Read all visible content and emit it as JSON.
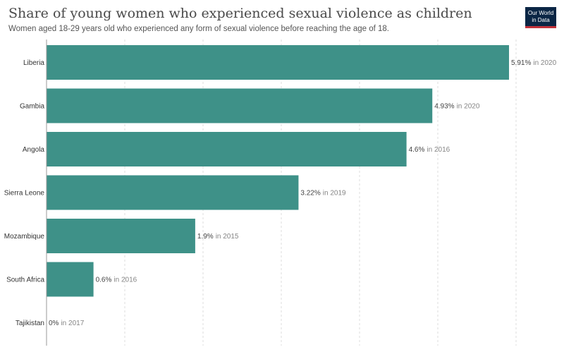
{
  "header": {
    "title": "Share of young women who experienced sexual violence as children",
    "subtitle": "Women aged 18-29 years old who experienced any form of sexual violence before reaching the age of 18.",
    "logo_line1": "Our World",
    "logo_line2": "in Data"
  },
  "colors": {
    "bar": "#3e9188",
    "grid": "#dddddd",
    "logo_bg": "#0b2645",
    "logo_accent": "#c2323a"
  },
  "chart_data": {
    "type": "bar",
    "orientation": "horizontal",
    "categories": [
      "Liberia",
      "Gambia",
      "Angola",
      "Sierra Leone",
      "Mozambique",
      "South Africa",
      "Tajikistan"
    ],
    "values": [
      5.91,
      4.93,
      4.6,
      3.22,
      1.9,
      0.6,
      0
    ],
    "value_labels": [
      "5.91%",
      "4.93%",
      "4.6%",
      "3.22%",
      "1.9%",
      "0.6%",
      "0%"
    ],
    "years": [
      "in 2020",
      "in 2020",
      "in 2016",
      "in 2019",
      "in 2015",
      "in 2016",
      "in 2017"
    ],
    "xlim": [
      0,
      6.5
    ],
    "grid": true,
    "grid_style": "dashed vertical"
  }
}
